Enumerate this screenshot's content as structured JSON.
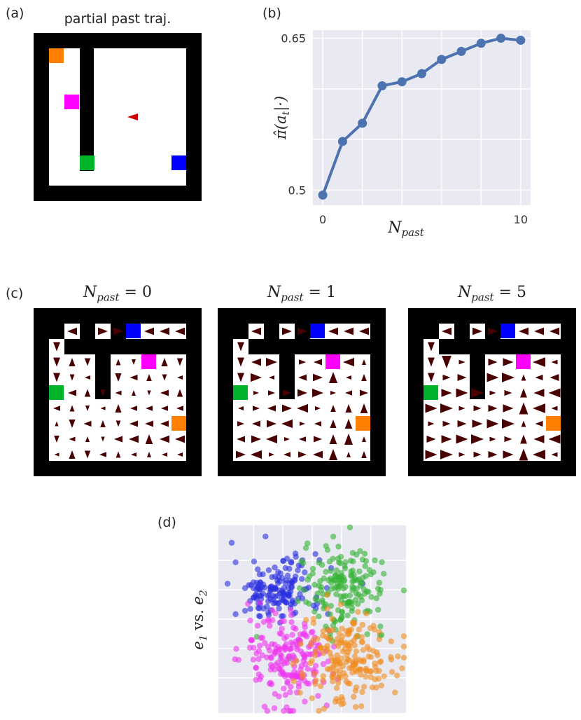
{
  "labels": {
    "a": "(a)",
    "b": "(b)",
    "c": "(c)",
    "d": "(d)"
  },
  "panel_a": {
    "title": "partial past traj."
  },
  "panel_c": {
    "titles": [
      {
        "var": "N",
        "sub": "past",
        "eq": " = 0"
      },
      {
        "var": "N",
        "sub": "past",
        "eq": " = 1"
      },
      {
        "var": "N",
        "sub": "past",
        "eq": " = 5"
      }
    ]
  },
  "colors": {
    "orange": "#ff8000",
    "magenta": "#ff00ff",
    "green": "#00b42a",
    "blue": "#0000ff",
    "agent": "#cc0000",
    "arrow": "#4a0000",
    "axbg": "#e8e9f1",
    "line": "#4c72b0"
  },
  "chart_data": [
    {
      "type": "line",
      "title": "",
      "xlabel": "N_past",
      "ylabel": "π̂(a_t|·)",
      "x": [
        0,
        1,
        2,
        3,
        4,
        5,
        6,
        7,
        8,
        9,
        10
      ],
      "values": [
        0.495,
        0.548,
        0.566,
        0.603,
        0.607,
        0.615,
        0.629,
        0.637,
        0.645,
        0.65,
        0.648
      ],
      "xlim": [
        -0.5,
        10.5
      ],
      "ylim": [
        0.485,
        0.658
      ],
      "xticks": [
        "0",
        "10"
      ],
      "yticks": [
        "0.5",
        "0.65"
      ],
      "ylabel_parts": {
        "main": "π̂(a",
        "sub": "t",
        "rest": "|·)"
      },
      "xlabel_parts": {
        "main": "N",
        "sub": "past"
      }
    },
    {
      "type": "scatter",
      "title": "",
      "ylabel_parts": {
        "e1": "e",
        "s1": "1",
        "vs": " vs. ",
        "e2": "e",
        "s2": "2"
      },
      "series": [
        {
          "name": "blue",
          "center": [
            -1.2,
            1.0
          ],
          "spread": [
            0.75,
            0.55
          ],
          "color": "#2a2ee0",
          "count": 160
        },
        {
          "name": "green",
          "center": [
            1.1,
            1.1
          ],
          "spread": [
            0.7,
            0.7
          ],
          "color": "#33b233",
          "count": 180
        },
        {
          "name": "magenta",
          "center": [
            -0.8,
            -1.4
          ],
          "spread": [
            0.75,
            0.85
          ],
          "color": "#ee33ee",
          "count": 200
        },
        {
          "name": "orange",
          "center": [
            1.2,
            -1.3
          ],
          "spread": [
            0.75,
            0.75
          ],
          "color": "#f08c1e",
          "count": 200
        }
      ]
    }
  ]
}
